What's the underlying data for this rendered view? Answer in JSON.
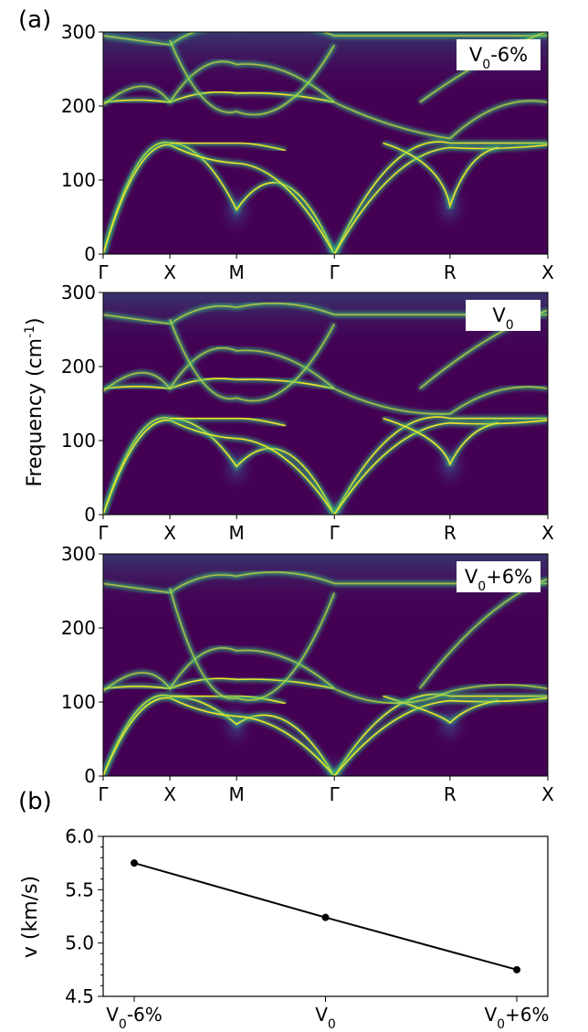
{
  "figure": {
    "panel_a_label": "(a)",
    "panel_b_label": "(b)"
  },
  "colors": {
    "background": "#440154",
    "band_glow": "#35b779",
    "band_core": "#fde725",
    "line": "#000000"
  },
  "chart_data": [
    {
      "type": "heatmap",
      "description_label": "V0-6%",
      "legend": {
        "base": "V",
        "sub": "0",
        "suffix": "-6%"
      },
      "ylabel": "",
      "ylim": [
        0,
        300
      ],
      "yticks": [
        "0",
        "100",
        "200",
        "300"
      ],
      "kpath": [
        {
          "label": "Γ",
          "pos": 0.0
        },
        {
          "label": "X",
          "pos": 0.15
        },
        {
          "label": "M",
          "pos": 0.3
        },
        {
          "label": "Γ",
          "pos": 0.52
        },
        {
          "label": "R",
          "pos": 0.78
        },
        {
          "label": "X",
          "pos": 1.0
        }
      ],
      "special_frequencies": {
        "X_acoustic": 150,
        "M_soft": 60,
        "R_soft": 65,
        "Gamma_optical": 205,
        "top_band": 295
      }
    },
    {
      "type": "heatmap",
      "description_label": "V0",
      "legend": {
        "base": "V",
        "sub": "0",
        "suffix": ""
      },
      "ylabel": "Frequency (cm-1)",
      "ylim": [
        0,
        300
      ],
      "yticks": [
        "0",
        "100",
        "200",
        "300"
      ],
      "kpath": [
        {
          "label": "Γ",
          "pos": 0.0
        },
        {
          "label": "X",
          "pos": 0.15
        },
        {
          "label": "M",
          "pos": 0.3
        },
        {
          "label": "Γ",
          "pos": 0.52
        },
        {
          "label": "R",
          "pos": 0.78
        },
        {
          "label": "X",
          "pos": 1.0
        }
      ],
      "special_frequencies": {
        "X_acoustic": 130,
        "M_soft": 65,
        "R_soft": 68,
        "Gamma_optical": 170,
        "top_band": 270
      }
    },
    {
      "type": "heatmap",
      "description_label": "V0+6%",
      "legend": {
        "base": "V",
        "sub": "0",
        "suffix": "+6%"
      },
      "ylabel": "",
      "ylim": [
        0,
        300
      ],
      "yticks": [
        "0",
        "100",
        "200",
        "300"
      ],
      "kpath": [
        {
          "label": "Γ",
          "pos": 0.0
        },
        {
          "label": "X",
          "pos": 0.15
        },
        {
          "label": "M",
          "pos": 0.3
        },
        {
          "label": "Γ",
          "pos": 0.52
        },
        {
          "label": "R",
          "pos": 0.78
        },
        {
          "label": "X",
          "pos": 1.0
        }
      ],
      "special_frequencies": {
        "X_acoustic": 108,
        "M_soft": 70,
        "R_soft": 72,
        "Gamma_optical": 118,
        "top_band": 260
      }
    },
    {
      "type": "line",
      "categories": [
        "V0-6%",
        "V0",
        "V0+6%"
      ],
      "category_labels": [
        {
          "base": "V",
          "sub": "0",
          "suffix": "-6%"
        },
        {
          "base": "V",
          "sub": "0",
          "suffix": ""
        },
        {
          "base": "V",
          "sub": "0",
          "suffix": "+6%"
        }
      ],
      "values": [
        5.75,
        5.24,
        4.75
      ],
      "ylabel": "v (km/s)",
      "ylim": [
        4.5,
        6.0
      ],
      "yticks": [
        "4.5",
        "5.0",
        "5.5",
        "6.0"
      ],
      "minor_yticks": [
        4.6,
        4.7,
        4.8,
        4.9,
        5.1,
        5.2,
        5.3,
        5.4,
        5.6,
        5.7,
        5.8,
        5.9
      ]
    }
  ]
}
